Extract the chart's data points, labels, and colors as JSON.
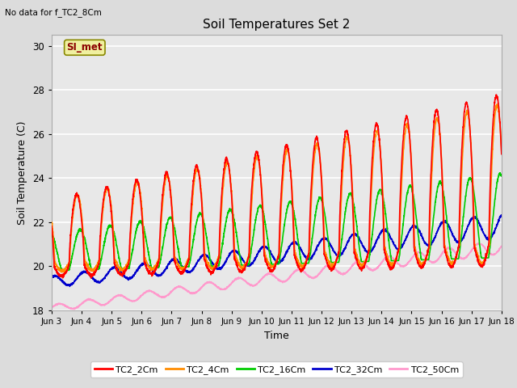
{
  "title": "Soil Temperatures Set 2",
  "xlabel": "Time",
  "ylabel": "Soil Temperature (C)",
  "top_left_note": "No data for f_TC2_8Cm",
  "annotation_box": "SI_met",
  "ylim": [
    18,
    30.5
  ],
  "background_color": "#dcdcdc",
  "plot_bg_color": "#e8e8e8",
  "series": {
    "TC2_2Cm": {
      "color": "#ff0000",
      "lw": 1.2
    },
    "TC2_4Cm": {
      "color": "#ff8c00",
      "lw": 1.2
    },
    "TC2_16Cm": {
      "color": "#00cc00",
      "lw": 1.2
    },
    "TC2_32Cm": {
      "color": "#0000cc",
      "lw": 1.2
    },
    "TC2_50Cm": {
      "color": "#ff99cc",
      "lw": 1.2
    }
  },
  "xtick_labels": [
    "Jun 3",
    "Jun 4",
    "Jun 5",
    "Jun 6",
    "Jun 7",
    "Jun 8",
    "Jun 9",
    "Jun 10",
    "Jun 11",
    "Jun 12",
    "Jun 13",
    "Jun 14",
    "Jun 15",
    "Jun 16",
    "Jun 17",
    "Jun 18"
  ],
  "ytick_labels": [
    "18",
    "20",
    "22",
    "24",
    "26",
    "28",
    "30"
  ],
  "ytick_values": [
    18,
    20,
    22,
    24,
    26,
    28,
    30
  ],
  "grid_color": "#ffffff",
  "legend_items": [
    "TC2_2Cm",
    "TC2_4Cm",
    "TC2_16Cm",
    "TC2_32Cm",
    "TC2_50Cm"
  ],
  "legend_colors": [
    "#ff0000",
    "#ff8c00",
    "#00cc00",
    "#0000cc",
    "#ff99cc"
  ]
}
